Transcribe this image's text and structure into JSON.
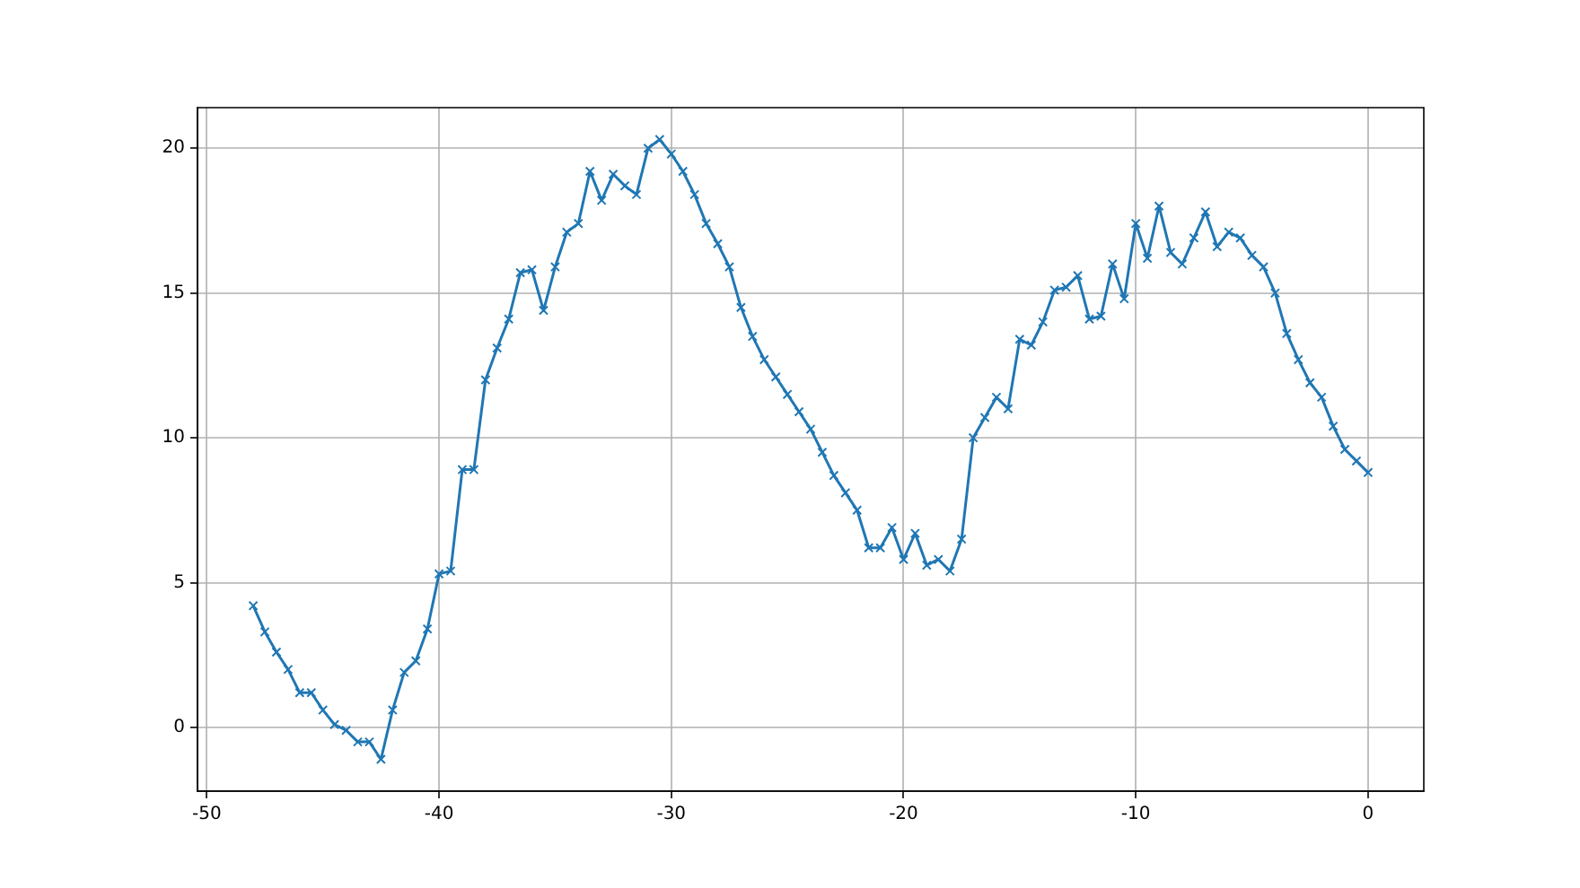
{
  "chart_data": {
    "type": "line",
    "x": [
      -48,
      -47.5,
      -47,
      -46.5,
      -46,
      -45.5,
      -45,
      -44.5,
      -44,
      -43.5,
      -43,
      -42.5,
      -42,
      -41.5,
      -41,
      -40.5,
      -40,
      -39.5,
      -39,
      -38.5,
      -38,
      -37.5,
      -37,
      -36.5,
      -36,
      -35.5,
      -35,
      -34.5,
      -34,
      -33.5,
      -33,
      -32.5,
      -32,
      -31.5,
      -31,
      -30.5,
      -30,
      -29.5,
      -29,
      -28.5,
      -28,
      -27.5,
      -27,
      -26.5,
      -26,
      -25.5,
      -25,
      -24.5,
      -24,
      -23.5,
      -23,
      -22.5,
      -22,
      -21.5,
      -21,
      -20.5,
      -20,
      -19.5,
      -19,
      -18.5,
      -18,
      -17.5,
      -17,
      -16.5,
      -16,
      -15.5,
      -15,
      -14.5,
      -14,
      -13.5,
      -13,
      -12.5,
      -12,
      -11.5,
      -11,
      -10.5,
      -10,
      -9.5,
      -9,
      -8.5,
      -8,
      -7.5,
      -7,
      -6.5,
      -6,
      -5.5,
      -5,
      -4.5,
      -4,
      -3.5,
      -3,
      -2.5,
      -2,
      -1.5,
      -1,
      -0.5,
      0
    ],
    "values": [
      4.2,
      3.3,
      2.6,
      2.0,
      1.2,
      1.2,
      0.6,
      0.1,
      -0.1,
      -0.5,
      -0.5,
      -1.1,
      0.6,
      1.9,
      2.3,
      3.4,
      5.3,
      5.4,
      8.9,
      8.9,
      12.0,
      13.1,
      14.1,
      15.7,
      15.8,
      14.4,
      15.9,
      17.1,
      17.4,
      19.2,
      18.2,
      19.1,
      18.7,
      18.4,
      20.0,
      20.3,
      19.8,
      19.2,
      18.4,
      17.4,
      16.7,
      15.9,
      14.5,
      13.5,
      12.7,
      12.1,
      11.5,
      10.9,
      10.3,
      9.5,
      8.7,
      8.1,
      7.5,
      6.2,
      6.2,
      6.9,
      5.8,
      6.7,
      5.6,
      5.8,
      5.4,
      6.5,
      10.0,
      10.7,
      11.4,
      11.0,
      13.4,
      13.2,
      14.0,
      15.1,
      15.2,
      15.6,
      14.1,
      14.2,
      16.0,
      14.8,
      17.4,
      16.2,
      18.0,
      16.4,
      16.0,
      16.9,
      17.8,
      16.6,
      17.1,
      16.9,
      16.3,
      15.9,
      15.0,
      13.6,
      12.7,
      11.9,
      11.4,
      10.4,
      9.6,
      9.2,
      8.8
    ],
    "color": "#1f77b4",
    "marker": "cross",
    "line_style": "solid",
    "grid": true,
    "xlim": [
      -50.4,
      2.4
    ],
    "ylim": [
      -2.2,
      21.4
    ],
    "xticks": [
      -50,
      -40,
      -30,
      -20,
      -10,
      0
    ],
    "yticks": [
      0,
      5,
      10,
      15,
      20
    ]
  }
}
